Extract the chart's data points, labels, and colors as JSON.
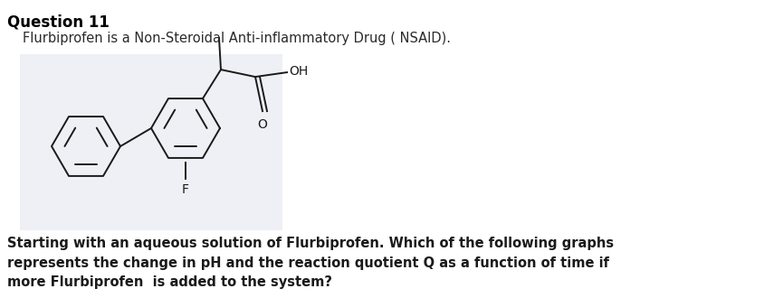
{
  "title": "Question 11",
  "subtitle": "Flurbiprofen is a Non-Steroidal Anti-inflammatory Drug ( NSAID).",
  "question_text": "Starting with an aqueous solution of Flurbiprofen. Which of the following graphs\nrepresents the change in pH and the reaction quotient Q as a function of time if\nmore Flurbiprofen  is added to the system?",
  "background_color": "#ffffff",
  "molecule_box_color": "#eef0f5",
  "title_fontsize": 12,
  "subtitle_fontsize": 10.5,
  "question_fontsize": 10.5,
  "mol_color": "#1a1a1a"
}
